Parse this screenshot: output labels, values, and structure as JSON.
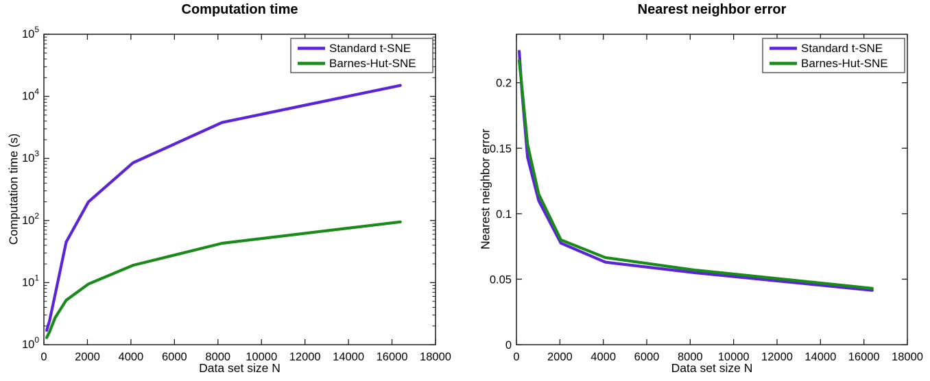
{
  "figure": {
    "background": "#ffffff",
    "axis_color": "#1a1a1a",
    "legend_border_color": "#4d4d4d"
  },
  "colors": {
    "standard_tsne": "#5b24d9",
    "barnes_hut_sne": "#1a8a1a"
  },
  "legend": {
    "entries": [
      {
        "label": "Standard t-SNE",
        "color": "#5b24d9"
      },
      {
        "label": "Barnes-Hut-SNE",
        "color": "#1a8a1a"
      }
    ],
    "position": "top-right"
  },
  "chart_data": [
    {
      "type": "line",
      "title": "Computation time",
      "xlabel": "Data set size N",
      "ylabel": "Computation time (s)",
      "yscale": "log",
      "grid": false,
      "legend_position": "top-right",
      "xlim": [
        0,
        18000
      ],
      "ylim": [
        1,
        100000
      ],
      "x_ticks": {
        "values": [
          0,
          2000,
          4000,
          6000,
          8000,
          10000,
          12000,
          14000,
          16000,
          18000
        ],
        "labels": [
          "0",
          "2000",
          "4000",
          "6000",
          "8000",
          "10000",
          "12000",
          "14000",
          "16000",
          "18000"
        ]
      },
      "y_ticks": {
        "type": "log",
        "base": "10",
        "exponents": [
          0,
          1,
          2,
          3,
          4,
          5
        ],
        "labels": [
          "10^0",
          "10^1",
          "10^2",
          "10^3",
          "10^4",
          "10^5"
        ]
      },
      "x": [
        128,
        256,
        512,
        1024,
        2048,
        4096,
        8192,
        16384
      ],
      "series": [
        {
          "name": "Standard t-SNE",
          "color": "#5b24d9",
          "values": [
            1.7,
            2.4,
            6.3,
            45,
            200,
            850,
            3800,
            15000
          ]
        },
        {
          "name": "Barnes-Hut-SNE",
          "color": "#1a8a1a",
          "values": [
            1.3,
            1.6,
            2.7,
            5.2,
            9.5,
            19,
            43,
            95
          ]
        }
      ]
    },
    {
      "type": "line",
      "title": "Nearest neighbor error",
      "xlabel": "Data set size N",
      "ylabel": "Nearest neighbor error",
      "yscale": "linear",
      "grid": false,
      "legend_position": "top-right",
      "xlim": [
        0,
        18000
      ],
      "ylim": [
        0,
        0.237
      ],
      "x_ticks": {
        "values": [
          0,
          2000,
          4000,
          6000,
          8000,
          10000,
          12000,
          14000,
          16000,
          18000
        ],
        "labels": [
          "0",
          "2000",
          "4000",
          "6000",
          "8000",
          "10000",
          "12000",
          "14000",
          "16000",
          "18000"
        ]
      },
      "y_ticks": {
        "type": "linear",
        "values": [
          0,
          0.05,
          0.1,
          0.15,
          0.2
        ],
        "labels": [
          "0",
          "0.05",
          "0.1",
          "0.15",
          "0.2"
        ]
      },
      "x": [
        128,
        256,
        512,
        1024,
        2048,
        4096,
        8192,
        16384
      ],
      "series": [
        {
          "name": "Standard t-SNE",
          "color": "#5b24d9",
          "values": [
            0.224,
            0.193,
            0.143,
            0.11,
            0.0775,
            0.063,
            0.055,
            0.0415
          ]
        },
        {
          "name": "Barnes-Hut-SNE",
          "color": "#1a8a1a",
          "values": [
            0.217,
            0.196,
            0.153,
            0.115,
            0.08,
            0.0665,
            0.057,
            0.043
          ]
        }
      ]
    }
  ]
}
